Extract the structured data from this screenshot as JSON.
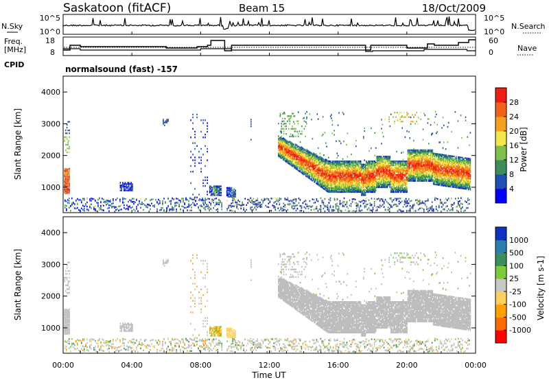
{
  "header": {
    "station": "Saskatoon (fitACF)",
    "beam": "Beam 15",
    "date": "18/Oct/2009"
  },
  "panels": {
    "nsky": {
      "left_label": "N.Sky",
      "right_label": "N.Search",
      "left_ticks": [
        "10^5",
        "10^0"
      ],
      "right_ticks": [
        "10^5",
        "10^0"
      ]
    },
    "freq": {
      "left_label_1": "Freq.",
      "left_label_2": "[MHz]",
      "right_label": "Nave",
      "left_ticks": [
        "18",
        "8"
      ],
      "right_ticks": [
        "60",
        "0"
      ]
    },
    "cpid": {
      "label": "CPID",
      "text": "normalsound (fast) -157"
    }
  },
  "colors": {
    "power_scale": [
      "#0000ff",
      "#1f4fb0",
      "#3c8f5a",
      "#7fc04a",
      "#f5e64b",
      "#f7a01a",
      "#f26318",
      "#ef1d12"
    ],
    "velocity_scale": [
      "#ff0000",
      "#ff6a00",
      "#ff9f00",
      "#ffd060",
      "#c8c8c8",
      "#c8c8c8",
      "#7fcc3a",
      "#3c8f5a",
      "#2b7fb0",
      "#1030c0"
    ],
    "ground_scatter": "#bdbdbd"
  },
  "chart_data": [
    {
      "type": "heatmap",
      "name": "power",
      "ylabel": "Slant Range [km]",
      "y_ticks": [
        "1000",
        "2000",
        "3000",
        "4000"
      ],
      "ylim": [
        200,
        4500
      ],
      "x_range_hours": [
        0,
        24
      ],
      "colorbar": {
        "label": "Power [dB]",
        "ticks": [
          "4",
          "8",
          "12",
          "16",
          "20",
          "24",
          "28"
        ],
        "range": [
          0,
          32
        ]
      }
    },
    {
      "type": "heatmap",
      "name": "velocity",
      "ylabel": "Slant Range [km]",
      "y_ticks": [
        "1000",
        "2000",
        "3000",
        "4000"
      ],
      "ylim": [
        200,
        4500
      ],
      "x_range_hours": [
        0,
        24
      ],
      "colorbar": {
        "label": "Velocity [m s-1]",
        "ticks": [
          "-1000",
          "-500",
          "-100",
          "-25",
          "25",
          "100",
          "500",
          "1000"
        ]
      }
    }
  ],
  "x_axis": {
    "label": "Time UT",
    "ticks": [
      "00:00",
      "04:00",
      "08:00",
      "12:00",
      "16:00",
      "20:00",
      "00:00"
    ]
  }
}
